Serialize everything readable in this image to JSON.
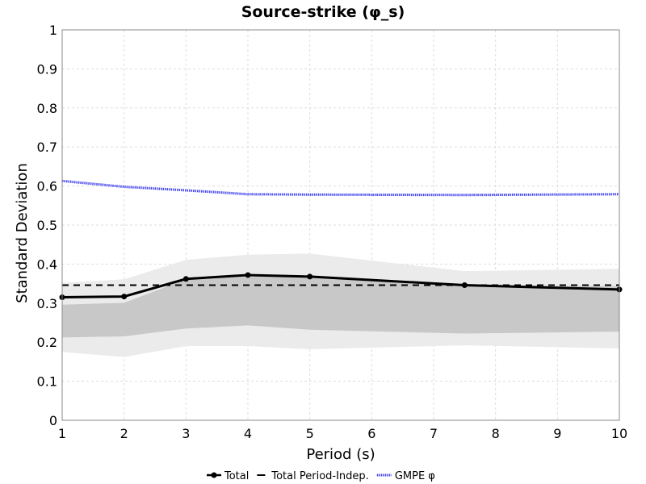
{
  "chart_data": {
    "type": "line",
    "title": "Source-strike (φ_s)",
    "xlabel": "Period (s)",
    "ylabel": "Standard Deviation",
    "xlim": [
      1,
      10
    ],
    "ylim": [
      0,
      1
    ],
    "xticks": [
      "1",
      "2",
      "3",
      "4",
      "5",
      "6",
      "7",
      "8",
      "9",
      "10"
    ],
    "yticks": [
      "0",
      "0.1",
      "0.2",
      "0.3",
      "0.4",
      "0.5",
      "0.6",
      "0.7",
      "0.8",
      "0.9",
      "1"
    ],
    "grid": true,
    "legend_position": "bottom",
    "series": [
      {
        "name": "Total",
        "style": "solid-black-markers",
        "color": "#000000",
        "x": [
          1,
          2,
          3,
          4,
          5,
          7.5,
          10
        ],
        "y": [
          0.315,
          0.317,
          0.362,
          0.372,
          0.368,
          0.346,
          0.335
        ]
      },
      {
        "name": "Total Period-Indep.",
        "style": "dashed-black",
        "color": "#000000",
        "x": [
          1,
          10
        ],
        "y": [
          0.346,
          0.346
        ]
      },
      {
        "name": "GMPE φ",
        "style": "dotted-blue",
        "color": "#4444ee",
        "x": [
          1,
          2,
          3,
          4,
          5,
          7.5,
          10
        ],
        "y": [
          0.613,
          0.598,
          0.589,
          0.579,
          0.578,
          0.577,
          0.579
        ]
      }
    ],
    "bands": [
      {
        "color": "#ebebeb",
        "x": [
          1,
          2,
          3,
          4,
          5,
          7.5,
          10
        ],
        "lower": [
          0.175,
          0.162,
          0.19,
          0.19,
          0.182,
          0.192,
          0.184
        ],
        "upper": [
          0.352,
          0.361,
          0.411,
          0.424,
          0.427,
          0.382,
          0.388
        ]
      },
      {
        "color": "#c8c8c8",
        "x": [
          1,
          2,
          3,
          4,
          5,
          7.5,
          10
        ],
        "lower": [
          0.212,
          0.215,
          0.235,
          0.243,
          0.232,
          0.222,
          0.227
        ],
        "upper": [
          0.296,
          0.301,
          0.361,
          0.368,
          0.367,
          0.346,
          0.343
        ]
      }
    ]
  }
}
